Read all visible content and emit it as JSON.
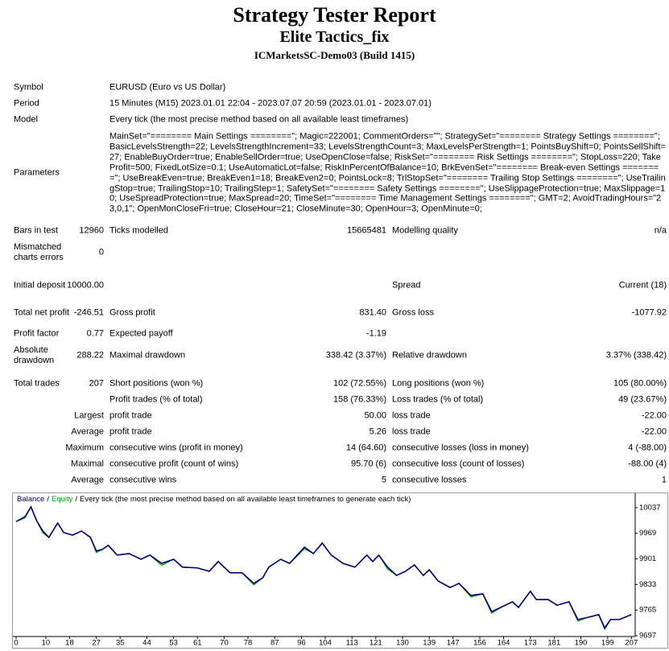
{
  "header": {
    "title": "Strategy Tester Report",
    "subtitle": "Elite Tactics_fix",
    "server": "ICMarketsSC-Demo03 (Build 1415)"
  },
  "table": {
    "rows": [
      [
        "Symbol",
        "EURUSD (Euro vs US Dollar)"
      ],
      [
        "Period",
        "15 Minutes (M15) 2023.01.01 22:04 - 2023.07.07 20:59 (2023.01.01 - 2023.07.01)"
      ],
      [
        "Model",
        "Every tick (the most precise method based on all available least timeframes)"
      ],
      [
        "Parameters",
        "MainSet=\"======== Main Settings ========\"; Magic=222001; CommentOrders=\"\"; StrategySet=\"======== Strategy Settings ========\"; BasicLevelsStrength=22; LevelsStrengthIncrement=33; LevelsStrengthCount=3; MaxLevelsPerStrength=1; PointsBuyShift=0; PointsSellShift=27; EnableBuyOrder=true; EnableSellOrder=true; UseOpenClose=false; RiskSet=\"======== Risk Settings ========\"; StopLoss=220; TakeProfit=500; FixedLotSize=0.1; UseAutomaticLot=false; RiskInPercentOfBalance=10; BrkEvenSet=\"======== Break-even Settings ========\"; UseBreakEven=true; BreakEven1=18; BreakEven2=0; PointsLock=8; TrlStopSet=\"======== Trailing Stop Settings ========\"; UseTrailingStop=true; TrailingStop=10; TrailingStep=1; SafetySet=\"======== Safety Settings ========\"; UseSlippageProtection=true; MaxSlippage=10; UseSpreadProtection=true; MaxSpread=20; TimeSet=\"======== Time Management Settings ========\"; GMT=2; AvoidTradingHours=\"23,0,1\"; OpenMonCloseFri=true; CloseHour=21; CloseMinute=30; OpenHour=3; OpenMinute=0;"
      ],
      [
        "Bars in test",
        "12960",
        "Ticks modelled",
        "15665481",
        "Modelling quality",
        "n/a"
      ],
      [
        "Mismatched charts errors",
        "0"
      ],
      [
        "Initial deposit",
        "10000.00",
        "Spread",
        "Current (18)"
      ],
      [
        "Total net profit",
        "-246.51",
        "Gross profit",
        "831.40",
        "Gross loss",
        "-1077.92"
      ],
      [
        "Profit factor",
        "0.77",
        "Expected payoff",
        "-1.19"
      ],
      [
        "Absolute drawdown",
        "288.22",
        "Maximal drawdown",
        "338.42 (3.37%)",
        "Relative drawdown",
        "3.37% (338.42)"
      ],
      [
        "Total trades",
        "207",
        "Short positions (won %)",
        "102 (72.55%)",
        "Long positions (won %)",
        "105 (80.00%)"
      ],
      [
        "Profit trades (% of total)",
        "158 (76.33%)",
        "Loss trades (% of total)",
        "49 (23.67%)"
      ],
      [
        "Largest",
        "profit trade",
        "50.00",
        "loss trade",
        "-22.00"
      ],
      [
        "Average",
        "profit trade",
        "5.26",
        "loss trade",
        "-22.00"
      ],
      [
        "Maximum",
        "consecutive wins (profit in money)",
        "14 (64.60)",
        "consecutive losses (loss in money)",
        "4 (-88.00)"
      ],
      [
        "Maximal",
        "consecutive profit (count of wins)",
        "95.70 (6)",
        "consecutive loss (count of losses)",
        "-88.00 (4)"
      ],
      [
        "Average",
        "consecutive wins",
        "5",
        "consecutive losses",
        "1"
      ]
    ]
  },
  "chart_data": {
    "type": "line",
    "legend_separator": "/",
    "description": "Every tick (the most precise method based on all available least timeframes to generate each tick)",
    "x": [
      0,
      3,
      5,
      7,
      9,
      11,
      14,
      16,
      19,
      22,
      25,
      27,
      29,
      31,
      34,
      38,
      42,
      45,
      49,
      53,
      56,
      61,
      65,
      68,
      72,
      76,
      80,
      83,
      85,
      89,
      92,
      97,
      100,
      103,
      106,
      110,
      114,
      118,
      120,
      122,
      125,
      128,
      131,
      134,
      137,
      139,
      142,
      146,
      149,
      153,
      157,
      160,
      163,
      167,
      169,
      173,
      175,
      179,
      182,
      186,
      189,
      192,
      196,
      198,
      200,
      203,
      207
    ],
    "series": [
      {
        "name": "Balance",
        "color": "#000080",
        "values": [
          10000,
          10013,
          10039,
          10001,
          9975,
          9958,
          9996,
          9971,
          9964,
          9975,
          9958,
          9922,
          9926,
          9937,
          9911,
          9915,
          9900,
          9911,
          9889,
          9900,
          9879,
          9877,
          9868,
          9894,
          9864,
          9864,
          9836,
          9851,
          9879,
          9900,
          9889,
          9932,
          9915,
          9943,
          9911,
          9889,
          9879,
          9911,
          9894,
          9911,
          9879,
          9857,
          9868,
          9885,
          9857,
          9872,
          9842,
          9825,
          9836,
          9804,
          9808,
          9761,
          9772,
          9787,
          9772,
          9815,
          9793,
          9793,
          9778,
          9787,
          9740,
          9745,
          9753,
          9718,
          9740,
          9740,
          9753
        ]
      },
      {
        "name": "Equity",
        "color": "#00a000",
        "values": [
          10000,
          10010,
          10039,
          10001,
          9970,
          9958,
          9996,
          9971,
          9964,
          9975,
          9958,
          9918,
          9926,
          9937,
          9911,
          9915,
          9900,
          9911,
          9884,
          9900,
          9879,
          9877,
          9868,
          9894,
          9864,
          9864,
          9832,
          9851,
          9879,
          9900,
          9889,
          9928,
          9915,
          9943,
          9911,
          9889,
          9879,
          9911,
          9894,
          9911,
          9874,
          9857,
          9868,
          9885,
          9857,
          9872,
          9842,
          9825,
          9836,
          9800,
          9808,
          9757,
          9772,
          9787,
          9772,
          9815,
          9793,
          9793,
          9778,
          9787,
          9736,
          9745,
          9753,
          9714,
          9740,
          9740,
          9753
        ]
      }
    ],
    "xlim": [
      0,
      208
    ],
    "ylim": [
      9697,
      10073
    ],
    "xticks": [
      0,
      10,
      18,
      27,
      35,
      44,
      53,
      61,
      70,
      78,
      87,
      96,
      104,
      113,
      121,
      130,
      139,
      147,
      156,
      164,
      173,
      181,
      190,
      199,
      207
    ],
    "yticks": [
      10037,
      9969,
      9901,
      9833,
      9765,
      9697
    ]
  }
}
